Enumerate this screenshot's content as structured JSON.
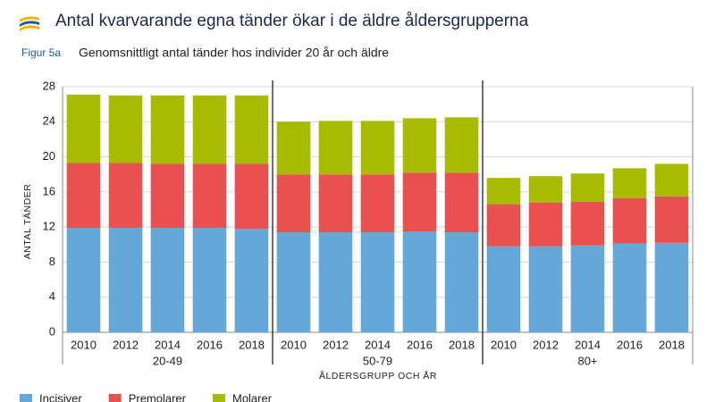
{
  "chart_data": {
    "type": "stacked_bar",
    "title": "Antal kvarvarande egna tänder ökar i de äldre åldersgrupperna",
    "figure_label": "Figur 5a",
    "subtitle": "Genomsnittligt antal tänder hos individer 20 år och äldre",
    "y_label": "ANTAL TÄNDER",
    "x_label": "ÅLDERSGRUPP OCH ÅR",
    "groups": [
      "20-49",
      "50-79",
      "80+"
    ],
    "categories": [
      "2010",
      "2012",
      "2014",
      "2016",
      "2018",
      "2010",
      "2012",
      "2014",
      "2016",
      "2018",
      "2010",
      "2012",
      "2014",
      "2016",
      "2018"
    ],
    "series": [
      {
        "name": "Incisiver",
        "color": "#64a7d9",
        "values": [
          11.9,
          11.9,
          11.9,
          11.9,
          11.8,
          11.4,
          11.4,
          11.4,
          11.5,
          11.4,
          9.8,
          9.8,
          9.9,
          10.1,
          10.2
        ]
      },
      {
        "name": "Premolarer",
        "color": "#e8514f",
        "values": [
          7.4,
          7.4,
          7.3,
          7.3,
          7.4,
          6.6,
          6.6,
          6.6,
          6.7,
          6.8,
          4.8,
          5.0,
          5.0,
          5.2,
          5.3
        ]
      },
      {
        "name": "Molarer",
        "color": "#a9bb00",
        "values": [
          7.8,
          7.7,
          7.8,
          7.8,
          7.8,
          6.0,
          6.1,
          6.1,
          6.2,
          6.3,
          3.0,
          3.0,
          3.2,
          3.4,
          3.7
        ]
      }
    ],
    "ylim": [
      0,
      28
    ],
    "yticks": [
      0,
      4,
      8,
      12,
      16,
      20,
      24,
      28
    ],
    "grid": true
  }
}
